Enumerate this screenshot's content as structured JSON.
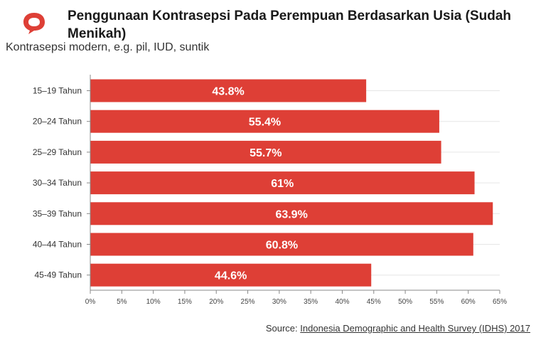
{
  "header": {
    "title": "Penggunaan Kontrasepsi Pada Perempuan Berdasarkan Usia (Sudah Menikah)",
    "subtitle": "Kontrasepsi modern, e.g. pil, IUD, suntik",
    "logo_icon": "speech-bubble-logo-icon"
  },
  "chart_data": {
    "type": "bar",
    "orientation": "horizontal",
    "title": "Penggunaan Kontrasepsi Pada Perempuan Berdasarkan Usia (Sudah Menikah)",
    "subtitle": "Kontrasepsi modern, e.g. pil, IUD, suntik",
    "categories": [
      "15–19 Tahun",
      "20–24 Tahun",
      "25–29 Tahun",
      "30–34 Tahun",
      "35–39 Tahun",
      "40–44 Tahun",
      "45-49 Tahun"
    ],
    "values": [
      43.8,
      55.4,
      55.7,
      61,
      63.9,
      60.8,
      44.6
    ],
    "value_labels": [
      "43.8%",
      "55.4%",
      "55.7%",
      "61%",
      "63.9%",
      "60.8%",
      "44.6%"
    ],
    "x_ticks": [
      "0%",
      "5%",
      "10%",
      "15%",
      "20%",
      "25%",
      "30%",
      "35%",
      "40%",
      "45%",
      "50%",
      "55%",
      "60%",
      "65%"
    ],
    "xlim": [
      0,
      65
    ],
    "xlabel": "",
    "ylabel": "",
    "grid": true,
    "bar_color": "#de3f36"
  },
  "footer": {
    "source_prefix": "Source: ",
    "source_link": "Indonesia Demographic and Health Survey (IDHS) 2017"
  },
  "colors": {
    "accent": "#de3f36",
    "grid": "#e6e6e6",
    "axis": "#888888"
  }
}
